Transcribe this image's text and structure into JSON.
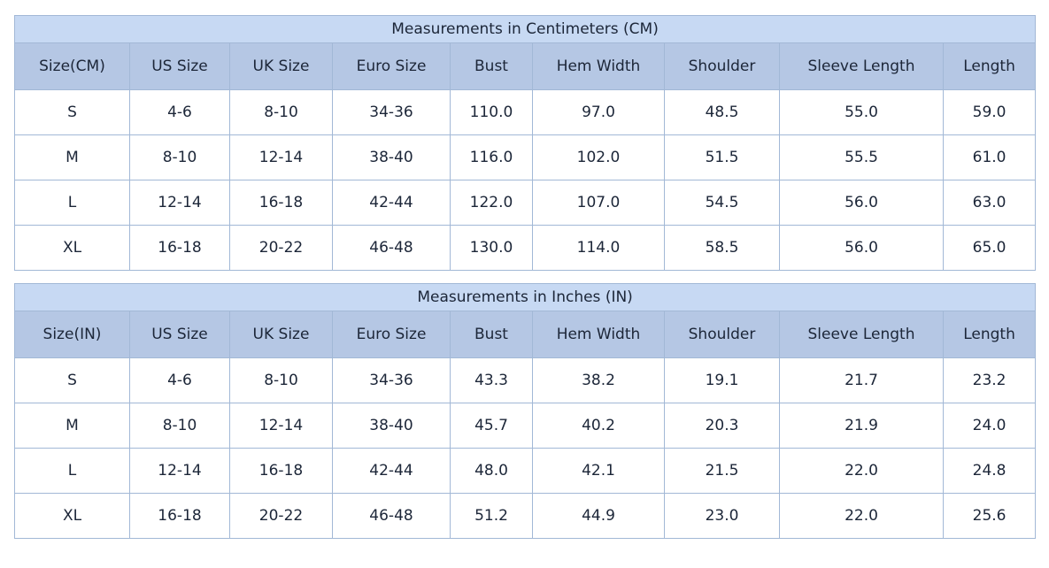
{
  "colors": {
    "title_row_bg": "#c7d9f3",
    "header_row_bg": "#b5c7e4",
    "border": "#a2b8d6",
    "text": "#1c2638",
    "row_bg": "#ffffff"
  },
  "tables": [
    {
      "title": "Measurements in Centimeters (CM)",
      "columns": [
        "Size(CM)",
        "US Size",
        "UK Size",
        "Euro Size",
        "Bust",
        "Hem Width",
        "Shoulder",
        "Sleeve Length",
        "Length"
      ],
      "rows": [
        [
          "S",
          "4-6",
          "8-10",
          "34-36",
          "110.0",
          "97.0",
          "48.5",
          "55.0",
          "59.0"
        ],
        [
          "M",
          "8-10",
          "12-14",
          "38-40",
          "116.0",
          "102.0",
          "51.5",
          "55.5",
          "61.0"
        ],
        [
          "L",
          "12-14",
          "16-18",
          "42-44",
          "122.0",
          "107.0",
          "54.5",
          "56.0",
          "63.0"
        ],
        [
          "XL",
          "16-18",
          "20-22",
          "46-48",
          "130.0",
          "114.0",
          "58.5",
          "56.0",
          "65.0"
        ]
      ]
    },
    {
      "title": "Measurements in Inches (IN)",
      "columns": [
        "Size(IN)",
        "US Size",
        "UK Size",
        "Euro Size",
        "Bust",
        "Hem Width",
        "Shoulder",
        "Sleeve Length",
        "Length"
      ],
      "rows": [
        [
          "S",
          "4-6",
          "8-10",
          "34-36",
          "43.3",
          "38.2",
          "19.1",
          "21.7",
          "23.2"
        ],
        [
          "M",
          "8-10",
          "12-14",
          "38-40",
          "45.7",
          "40.2",
          "20.3",
          "21.9",
          "24.0"
        ],
        [
          "L",
          "12-14",
          "16-18",
          "42-44",
          "48.0",
          "42.1",
          "21.5",
          "22.0",
          "24.8"
        ],
        [
          "XL",
          "16-18",
          "20-22",
          "46-48",
          "51.2",
          "44.9",
          "23.0",
          "22.0",
          "25.6"
        ]
      ]
    }
  ],
  "chart_data": [
    {
      "type": "table",
      "title": "Measurements in Centimeters (CM)",
      "columns": [
        "Size(CM)",
        "US Size",
        "UK Size",
        "Euro Size",
        "Bust",
        "Hem Width",
        "Shoulder",
        "Sleeve Length",
        "Length"
      ],
      "rows": [
        [
          "S",
          "4-6",
          "8-10",
          "34-36",
          110.0,
          97.0,
          48.5,
          55.0,
          59.0
        ],
        [
          "M",
          "8-10",
          "12-14",
          "38-40",
          116.0,
          102.0,
          51.5,
          55.5,
          61.0
        ],
        [
          "L",
          "12-14",
          "16-18",
          "42-44",
          122.0,
          107.0,
          54.5,
          56.0,
          63.0
        ],
        [
          "XL",
          "16-18",
          "20-22",
          "46-48",
          130.0,
          114.0,
          58.5,
          56.0,
          65.0
        ]
      ]
    },
    {
      "type": "table",
      "title": "Measurements in Inches (IN)",
      "columns": [
        "Size(IN)",
        "US Size",
        "UK Size",
        "Euro Size",
        "Bust",
        "Hem Width",
        "Shoulder",
        "Sleeve Length",
        "Length"
      ],
      "rows": [
        [
          "S",
          "4-6",
          "8-10",
          "34-36",
          43.3,
          38.2,
          19.1,
          21.7,
          23.2
        ],
        [
          "M",
          "8-10",
          "12-14",
          "38-40",
          45.7,
          40.2,
          20.3,
          21.9,
          24.0
        ],
        [
          "L",
          "12-14",
          "16-18",
          "42-44",
          48.0,
          42.1,
          21.5,
          22.0,
          24.8
        ],
        [
          "XL",
          "16-18",
          "20-22",
          "46-48",
          51.2,
          44.9,
          23.0,
          22.0,
          25.6
        ]
      ]
    }
  ]
}
